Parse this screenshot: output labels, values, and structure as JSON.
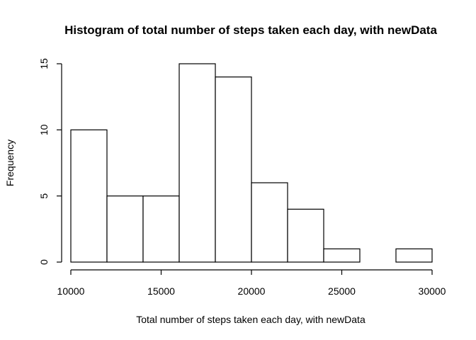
{
  "chart_data": {
    "type": "bar",
    "subtype": "histogram",
    "title": "Histogram of total number of steps taken each day, with newData",
    "xlabel": "Total number of steps taken each day, with newData",
    "ylabel": "Frequency",
    "bins": [
      {
        "start": 10000,
        "end": 12000,
        "count": 10
      },
      {
        "start": 12000,
        "end": 14000,
        "count": 5
      },
      {
        "start": 14000,
        "end": 16000,
        "count": 5
      },
      {
        "start": 16000,
        "end": 18000,
        "count": 15
      },
      {
        "start": 18000,
        "end": 20000,
        "count": 14
      },
      {
        "start": 20000,
        "end": 22000,
        "count": 6
      },
      {
        "start": 22000,
        "end": 24000,
        "count": 4
      },
      {
        "start": 24000,
        "end": 26000,
        "count": 1
      },
      {
        "start": 26000,
        "end": 28000,
        "count": 0
      },
      {
        "start": 28000,
        "end": 30000,
        "count": 1
      }
    ],
    "xlim": [
      10000,
      30000
    ],
    "ylim": [
      0,
      15
    ],
    "x_ticks": [
      "10000",
      "15000",
      "20000",
      "25000",
      "30000"
    ],
    "y_ticks": [
      "0",
      "5",
      "10",
      "15"
    ],
    "bar_fill": "#ffffff",
    "bar_stroke": "#000000",
    "grid": false,
    "legend": "none"
  }
}
